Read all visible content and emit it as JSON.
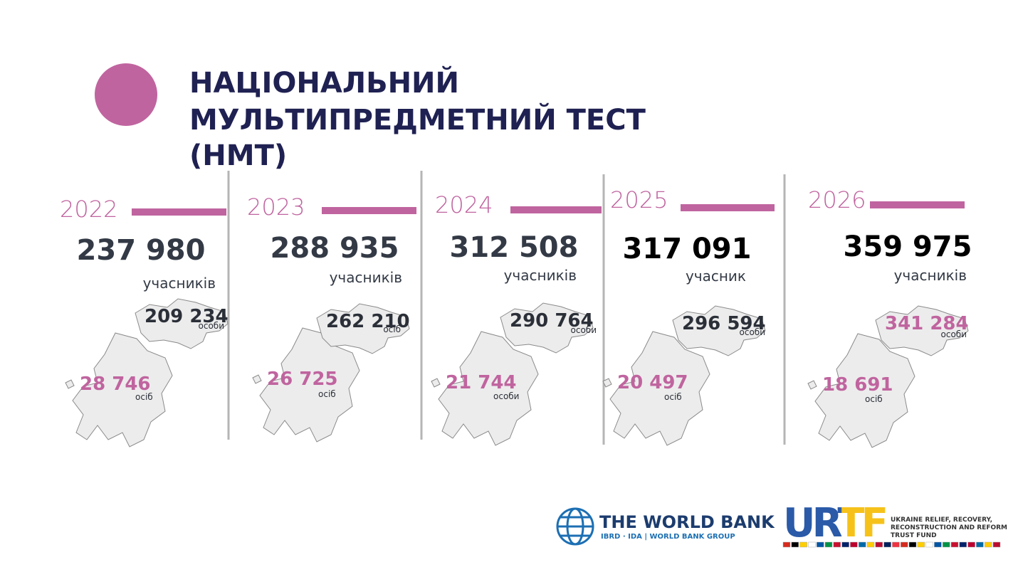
{
  "title": [
    "НАЦІОНАЛЬНИЙ",
    "МУЛЬТИПРЕДМЕТНИЙ ТЕСТ",
    "(НМТ)"
  ],
  "columns": [
    {
      "year": "2022",
      "total": "237 980",
      "total_unit": "учасників",
      "ukraine": "209 234",
      "ukraine_unit": "особи",
      "abroad": "28 746",
      "abroad_unit": "осіб"
    },
    {
      "year": "2023",
      "total": "288 935",
      "total_unit": "учасників",
      "ukraine": "262 210",
      "ukraine_unit": "осіб",
      "abroad": "26 725",
      "abroad_unit": "осіб"
    },
    {
      "year": "2024",
      "total": "312 508",
      "total_unit": "учасників",
      "ukraine": "290 764",
      "ukraine_unit": "особи",
      "abroad": "21 744",
      "abroad_unit": "особи"
    },
    {
      "year": "2025",
      "total": "317 091",
      "total_unit": "учасник",
      "ukraine": "296 594",
      "ukraine_unit": "особи",
      "abroad": "20 497",
      "abroad_unit": "осіб"
    },
    {
      "year": "2026",
      "total": "359 975",
      "total_unit": "учасників",
      "ukraine": "341 284",
      "ukraine_unit": "особи",
      "abroad": "18 691",
      "abroad_unit": "осіб"
    }
  ],
  "logos": {
    "world_bank": "THE WORLD BANK",
    "world_bank_sub": "IBRD · IDA | WORLD BANK GROUP",
    "urtf": "URTF",
    "urtf_desc": [
      "UKRAINE RELIEF, RECOVERY,",
      "RECONSTRUCTION AND REFORM",
      "TRUST FUND"
    ]
  }
}
